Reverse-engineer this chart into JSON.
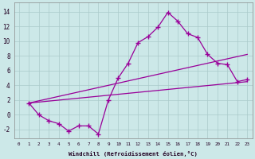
{
  "bg_color": "#cce8e8",
  "grid_color": "#aacaca",
  "line_color": "#990099",
  "xlim": [
    -0.5,
    23.5
  ],
  "ylim": [
    -3.2,
    15.2
  ],
  "xticks": [
    0,
    1,
    2,
    3,
    4,
    5,
    6,
    7,
    8,
    9,
    10,
    11,
    12,
    13,
    14,
    15,
    16,
    17,
    18,
    19,
    20,
    21,
    22,
    23
  ],
  "yticks": [
    -2,
    0,
    2,
    4,
    6,
    8,
    10,
    12,
    14
  ],
  "xlabel": "Windchill (Refroidissement éolien,°C)",
  "main_x": [
    1,
    2,
    3,
    4,
    5,
    6,
    7,
    8,
    9,
    10,
    11,
    12,
    13,
    14,
    15,
    16,
    17,
    18,
    19,
    20,
    21,
    22,
    23
  ],
  "main_y": [
    1.6,
    0.0,
    -0.8,
    -1.2,
    -2.2,
    -1.5,
    -1.5,
    -2.6,
    2.0,
    5.0,
    7.0,
    9.8,
    10.6,
    11.9,
    13.9,
    12.7,
    11.0,
    10.5,
    8.2,
    7.0,
    6.8,
    4.5,
    4.8
  ],
  "trend1_x": [
    1,
    23
  ],
  "trend1_y": [
    1.6,
    4.5
  ],
  "trend2_x": [
    1,
    23
  ],
  "trend2_y": [
    1.6,
    8.2
  ]
}
